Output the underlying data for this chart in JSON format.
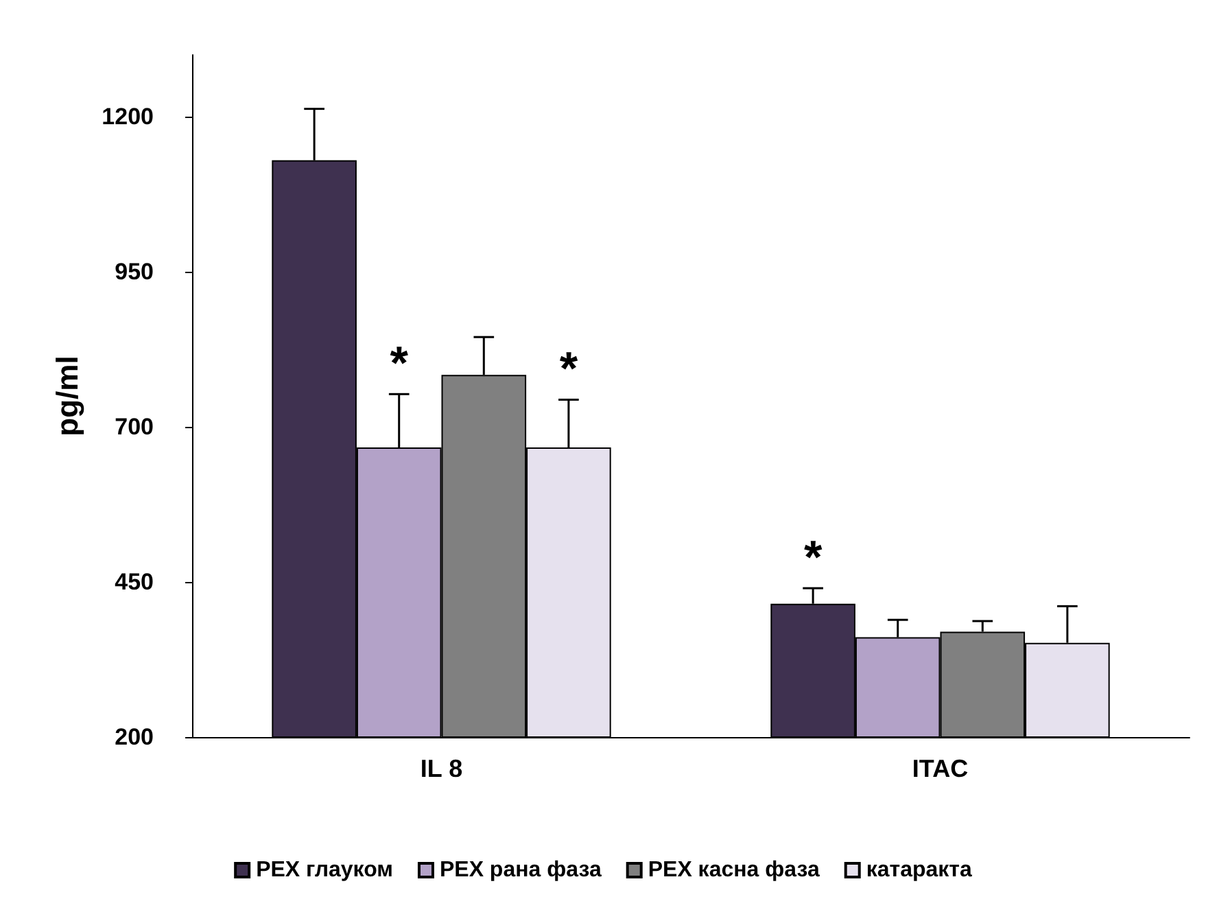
{
  "chart_data": {
    "type": "bar",
    "ylabel": "pg/ml",
    "categories": [
      "IL 8",
      "ITAC"
    ],
    "series": [
      {
        "name": "PEX глауком",
        "color": "#3f3150",
        "values": [
          1130,
          415
        ],
        "errors": [
          [
            1130,
            1213
          ],
          [
            415,
            440
          ]
        ]
      },
      {
        "name": "PEX рана фаза",
        "color": "#b3a2c8",
        "values": [
          667,
          361
        ],
        "errors": [
          [
            667,
            753
          ],
          [
            361,
            389
          ]
        ]
      },
      {
        "name": "PEX касна фаза",
        "color": "#808080",
        "values": [
          784,
          370
        ],
        "errors": [
          [
            784,
            845
          ],
          [
            370,
            387
          ]
        ]
      },
      {
        "name": "катаракта",
        "color": "#e6e1ee",
        "values": [
          667,
          352
        ],
        "errors": [
          [
            667,
            744
          ],
          [
            352,
            411
          ]
        ]
      }
    ],
    "annotations": [
      {
        "text": "*",
        "x": "IL 8",
        "y": 753
      },
      {
        "text": "*",
        "x": "IL 8",
        "y": 744
      },
      "*"
    ],
    "ylim": [
      200,
      1300
    ],
    "yticks": [
      200,
      450,
      700,
      950,
      1200
    ],
    "grid": false,
    "legend": "bottom"
  }
}
